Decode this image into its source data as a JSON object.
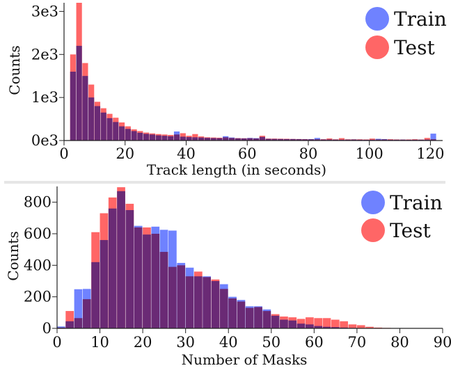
{
  "colors": {
    "train": "#6f82ff",
    "test": "#ff6666",
    "overlap": "#6a2a75",
    "axis": "#222222"
  },
  "chart_data": [
    {
      "type": "bar",
      "xlabel": "Track length (in seconds)",
      "ylabel": "Counts",
      "xlim": [
        0,
        124
      ],
      "ylim": [
        0,
        3200
      ],
      "xticks": [
        0,
        20,
        40,
        60,
        80,
        100,
        120
      ],
      "xtick_labels": [
        "0",
        "20",
        "40",
        "60",
        "80",
        "100",
        "120"
      ],
      "yticks": [
        0,
        1000,
        2000,
        3000
      ],
      "ytick_labels": [
        "0e3",
        "1e3",
        "2e3",
        "3e3"
      ],
      "bin_start": 2,
      "bin_width": 2,
      "legend": {
        "position": "top-right",
        "entries": [
          "Train",
          "Test"
        ]
      },
      "series": [
        {
          "name": "Train",
          "values": [
            1600,
            2200,
            1500,
            1000,
            800,
            650,
            520,
            430,
            330,
            270,
            220,
            180,
            155,
            140,
            120,
            110,
            100,
            210,
            90,
            80,
            75,
            70,
            62,
            58,
            55,
            100,
            70,
            52,
            50,
            60,
            55,
            85,
            40,
            38,
            36,
            34,
            35,
            32,
            30,
            32,
            60,
            25,
            25,
            22,
            20,
            22,
            25,
            20,
            18,
            20,
            40,
            32,
            20,
            20,
            22,
            18,
            20,
            20,
            22,
            160
          ]
        },
        {
          "name": "Test",
          "values": [
            2000,
            3200,
            1800,
            1300,
            900,
            750,
            620,
            530,
            420,
            330,
            260,
            220,
            185,
            165,
            150,
            140,
            130,
            140,
            170,
            110,
            150,
            95,
            75,
            70,
            65,
            75,
            60,
            55,
            52,
            55,
            48,
            110,
            45,
            45,
            42,
            40,
            35,
            35,
            32,
            30,
            30,
            30,
            48,
            28,
            55,
            28,
            28,
            28,
            25,
            45,
            25,
            28,
            30,
            25,
            22,
            25,
            30,
            22,
            60,
            30
          ]
        }
      ]
    },
    {
      "type": "bar",
      "xlabel": "Number of Masks",
      "ylabel": "Counts",
      "xlim": [
        0,
        90
      ],
      "ylim": [
        0,
        900
      ],
      "xticks": [
        0,
        10,
        20,
        30,
        40,
        50,
        60,
        70,
        80,
        90
      ],
      "xtick_labels": [
        "0",
        "10",
        "20",
        "30",
        "40",
        "50",
        "60",
        "70",
        "80",
        "90"
      ],
      "yticks": [
        0,
        200,
        400,
        600,
        800
      ],
      "ytick_labels": [
        "0",
        "200",
        "400",
        "600",
        "800"
      ],
      "bin_start": 0,
      "bin_width": 2,
      "legend": {
        "position": "top-right",
        "entries": [
          "Train",
          "Test"
        ]
      },
      "series": [
        {
          "name": "Train",
          "values": [
            12,
            45,
            248,
            250,
            420,
            560,
            760,
            870,
            750,
            650,
            595,
            645,
            625,
            620,
            415,
            385,
            330,
            330,
            300,
            280,
            200,
            180,
            140,
            140,
            120,
            80,
            55,
            50,
            30,
            25,
            15,
            10,
            8,
            5,
            3,
            2,
            1,
            1,
            0,
            0,
            0,
            0,
            0,
            0,
            0
          ]
        },
        {
          "name": "Test",
          "values": [
            5,
            110,
            65,
            185,
            610,
            730,
            830,
            895,
            790,
            640,
            640,
            600,
            485,
            390,
            400,
            330,
            360,
            325,
            310,
            250,
            190,
            170,
            130,
            135,
            110,
            90,
            75,
            70,
            60,
            70,
            65,
            65,
            55,
            45,
            25,
            20,
            10,
            5,
            3,
            2,
            1,
            0,
            0,
            0,
            0
          ]
        }
      ]
    }
  ]
}
